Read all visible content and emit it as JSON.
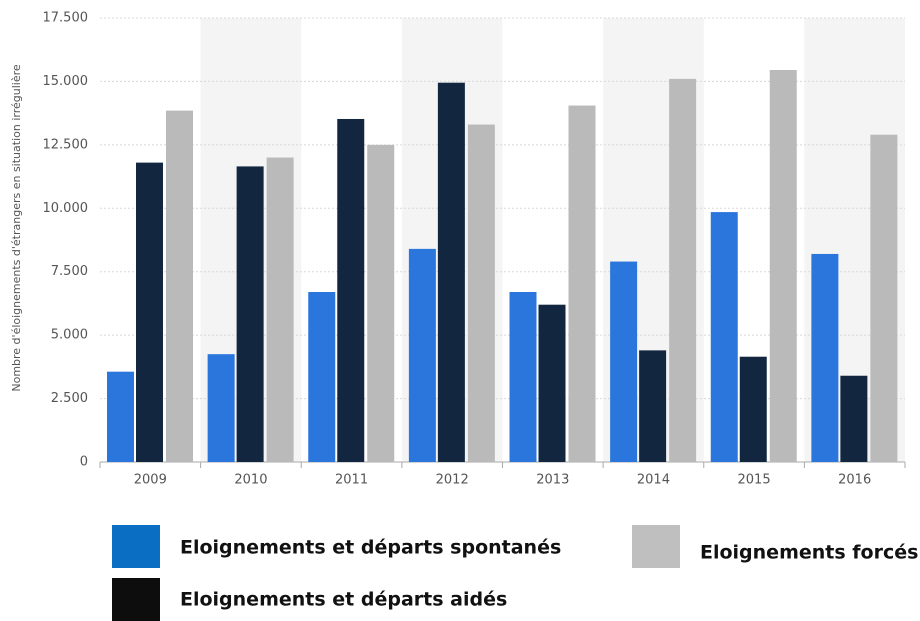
{
  "chart_data": {
    "type": "bar",
    "y_label": "Nombre d'éloignements d'étrangers en situation irrégulière",
    "categories": [
      "2009",
      "2010",
      "2011",
      "2012",
      "2013",
      "2014",
      "2015",
      "2016"
    ],
    "series": [
      {
        "name": "Eloignements et départs spontanés",
        "color": "#2a76dd",
        "legend_color": "#0a6fc2",
        "values": [
          3560,
          4250,
          6700,
          8400,
          6700,
          7900,
          9850,
          8200
        ]
      },
      {
        "name": "Eloignements et départs aidés",
        "color": "#12263f",
        "legend_color": "#0d0d0d",
        "values": [
          11800,
          11650,
          13520,
          14950,
          6200,
          4400,
          4150,
          3400
        ]
      },
      {
        "name": "Eloignements forcés",
        "color": "#bababa",
        "legend_color": "#bfbfbf",
        "values": [
          13850,
          12000,
          12500,
          13300,
          14050,
          15100,
          15450,
          12900
        ]
      }
    ],
    "ylim": [
      0,
      17500
    ],
    "yticks": [
      0,
      {
        "value": 2500,
        "label": "2.500"
      },
      {
        "value": 5000,
        "label": "5.000"
      },
      {
        "value": 7500,
        "label": "7.500"
      },
      {
        "value": 10000,
        "label": "10.000"
      },
      {
        "value": 12500,
        "label": "12.500"
      },
      {
        "value": 15000,
        "label": "15.000"
      },
      {
        "value": 17500,
        "label": "17.500"
      }
    ],
    "grid": true
  }
}
